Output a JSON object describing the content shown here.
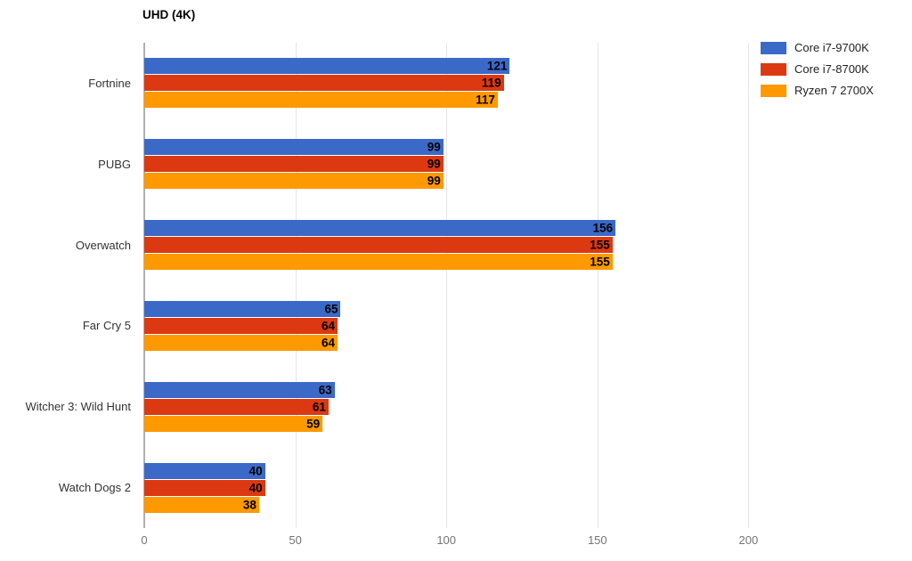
{
  "title": "UHD (4K)",
  "chart_data": {
    "type": "bar",
    "orientation": "horizontal",
    "title": "UHD (4K)",
    "xlabel": "",
    "ylabel": "",
    "categories": [
      "Fortnine",
      "PUBG",
      "Overwatch",
      "Far Cry 5",
      "Witcher 3: Wild Hunt",
      "Watch Dogs 2"
    ],
    "series": [
      {
        "name": "Core i7-9700K",
        "color": "#3B69C7",
        "values": [
          121,
          99,
          156,
          65,
          63,
          40
        ]
      },
      {
        "name": "Core i7-8700K",
        "color": "#DC3912",
        "values": [
          119,
          99,
          155,
          64,
          61,
          40
        ]
      },
      {
        "name": "Ryzen 7 2700X",
        "color": "#FF9900",
        "values": [
          117,
          99,
          155,
          64,
          59,
          38
        ]
      }
    ],
    "x_ticks": [
      0,
      50,
      100,
      150,
      200
    ],
    "xlim": [
      0,
      250
    ],
    "grid": true,
    "value_labels": true,
    "legend_position": "top-right"
  }
}
